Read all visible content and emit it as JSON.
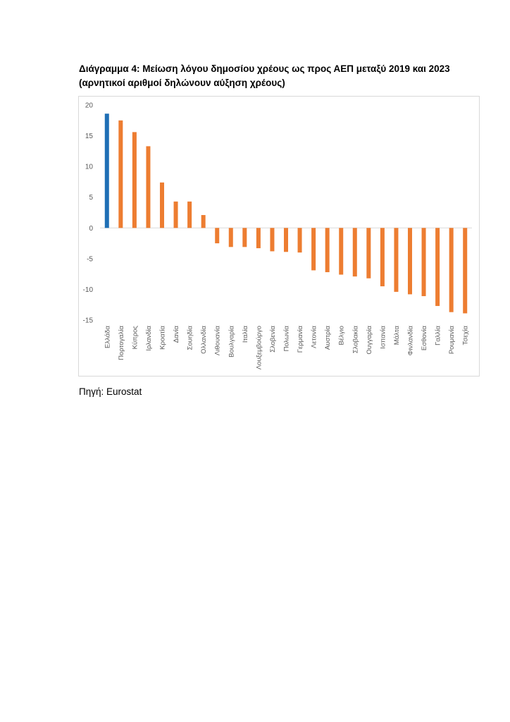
{
  "caption": {
    "line1": "Διάγραμμα 4: Μείωση λόγου δημοσίου χρέους ως προς ΑΕΠ μεταξύ 2019 και 2023",
    "line2": "(αρνητικοί αριθμοί δηλώνουν αύξηση χρέους)"
  },
  "source": "Πηγή: Eurostat",
  "chart_data": {
    "type": "bar",
    "title": "",
    "xlabel": "",
    "ylabel": "",
    "ylim": [
      -15,
      20
    ],
    "yticks": [
      20,
      15,
      10,
      5,
      0,
      -5,
      -10,
      -15
    ],
    "grid": false,
    "legend": "none",
    "colors": {
      "highlight": "#1f6fb5",
      "default": "#ed7d31"
    },
    "highlight_index": 0,
    "categories": [
      "Ελλάδα",
      "Πορτογαλία",
      "Κύπρος",
      "Ιρλανδία",
      "Κροατία",
      "Δανία",
      "Σουηδία",
      "Ολλανδία",
      "Λιθουανία",
      "Βουλγαρία",
      "Ιταλία",
      "Λουξεμβούργο",
      "Σλοβενία",
      "Πολωνία",
      "Γερμανία",
      "Λετονία",
      "Αυστρία",
      "Βέλγιο",
      "Σλοβακία",
      "Ουγγαρία",
      "Ισπανία",
      "Μάλτα",
      "Φινλανδία",
      "Εσθονία",
      "Γαλλία",
      "Ρουμανία",
      "Τσεχία"
    ],
    "values": [
      18.6,
      17.5,
      15.6,
      13.3,
      7.4,
      4.3,
      4.3,
      2.1,
      -2.5,
      -3.1,
      -3.1,
      -3.3,
      -3.8,
      -3.9,
      -4.0,
      -6.9,
      -7.2,
      -7.6,
      -7.9,
      -8.2,
      -9.5,
      -10.4,
      -10.8,
      -11.1,
      -12.7,
      -13.7,
      -13.9
    ]
  }
}
